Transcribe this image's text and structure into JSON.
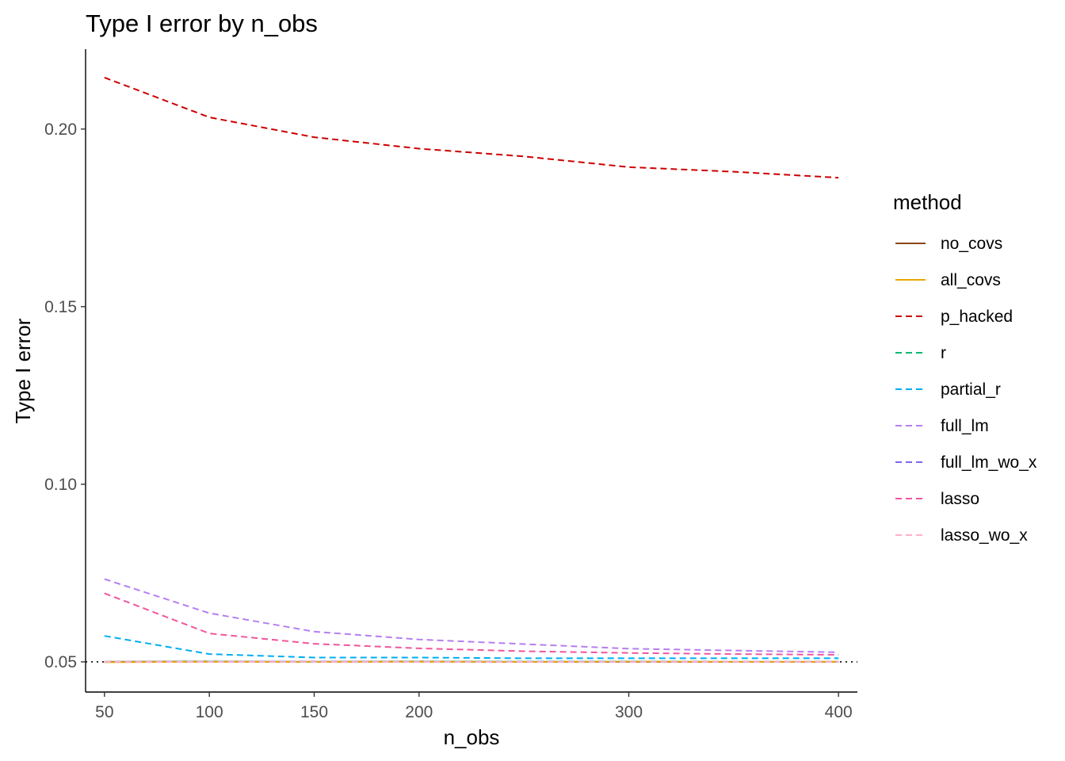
{
  "chart_data": {
    "type": "line",
    "title": "Type I error by n_obs",
    "xlabel": "n_obs",
    "ylabel": "Type I error",
    "xlim": [
      41,
      409
    ],
    "ylim": [
      0.0415,
      0.2225
    ],
    "x_ticks": [
      50,
      100,
      150,
      200,
      300,
      400
    ],
    "y_ticks": [
      0.05,
      0.1,
      0.15,
      0.2
    ],
    "y_tick_labels": [
      "0.05",
      "0.10",
      "0.15",
      "0.20"
    ],
    "grid": false,
    "legend_title": "method",
    "legend_position": "right",
    "reference_line": {
      "y": 0.05,
      "style": "dotted",
      "color": "#000000"
    },
    "x": [
      50,
      100,
      150,
      200,
      250,
      300,
      350,
      400
    ],
    "series": [
      {
        "name": "no_covs",
        "color": "#8B4513",
        "dash": "solid",
        "values": [
          0.05,
          0.0501,
          0.05,
          0.0501,
          0.05,
          0.05,
          0.05,
          0.05
        ]
      },
      {
        "name": "all_covs",
        "color": "#E6A800",
        "dash": "solid",
        "values": [
          0.0499,
          0.05,
          0.05,
          0.05,
          0.05,
          0.0501,
          0.05,
          0.05
        ]
      },
      {
        "name": "p_hacked",
        "color": "#CC0000",
        "dash": "dashed",
        "values": [
          0.2145,
          0.2033,
          0.1977,
          0.1945,
          0.1923,
          0.1893,
          0.188,
          0.1863
        ]
      },
      {
        "name": "r",
        "color": "#00B96F",
        "dash": "dashed",
        "values": [
          0.05,
          0.0501,
          0.05,
          0.0501,
          0.0501,
          0.0501,
          0.05,
          0.05
        ]
      },
      {
        "name": "partial_r",
        "color": "#00AEEF",
        "dash": "dashed",
        "values": [
          0.0573,
          0.0522,
          0.0512,
          0.0512,
          0.051,
          0.051,
          0.051,
          0.051
        ]
      },
      {
        "name": "full_lm",
        "color": "#B57EF2",
        "dash": "dashed",
        "values": [
          0.0733,
          0.0637,
          0.0585,
          0.0563,
          0.055,
          0.0537,
          0.0532,
          0.0527
        ]
      },
      {
        "name": "full_lm_wo_x",
        "color": "#7B68EE",
        "dash": "dashed",
        "values": [
          0.05,
          0.05,
          0.0501,
          0.05,
          0.05,
          0.05,
          0.05,
          0.05
        ]
      },
      {
        "name": "lasso",
        "color": "#F0569E",
        "dash": "dashed",
        "values": [
          0.0693,
          0.058,
          0.0551,
          0.0538,
          0.053,
          0.0525,
          0.0522,
          0.052
        ]
      },
      {
        "name": "lasso_wo_x",
        "color": "#FFB0C8",
        "dash": "dashed",
        "values": [
          0.05,
          0.05,
          0.05,
          0.05,
          0.05,
          0.05,
          0.05,
          0.05
        ]
      }
    ]
  }
}
